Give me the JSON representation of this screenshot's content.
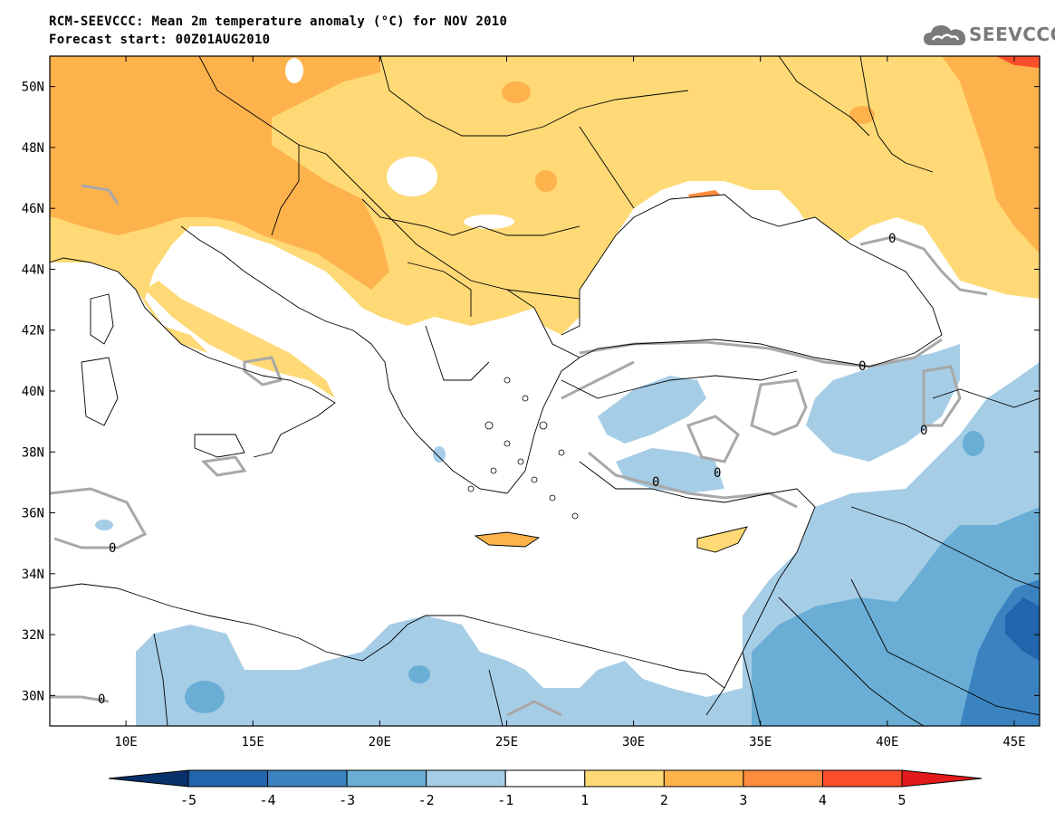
{
  "title": {
    "line1": "RCM-SEEVCCC: Mean 2m temperature anomaly (°C) for NOV 2010",
    "line2": "Forecast start: 00Z01AUG2010"
  },
  "logo": {
    "text": "SEEVCCC",
    "icon": "cloud-icon",
    "color": "#7a7a7a"
  },
  "map": {
    "lon_range": [
      7,
      46
    ],
    "lat_range": [
      29,
      51
    ],
    "lon_ticks": [
      "10E",
      "15E",
      "20E",
      "25E",
      "30E",
      "35E",
      "40E",
      "45E"
    ],
    "lon_tick_values": [
      10,
      15,
      20,
      25,
      30,
      35,
      40,
      45
    ],
    "lat_ticks": [
      "50N",
      "48N",
      "46N",
      "44N",
      "42N",
      "40N",
      "38N",
      "36N",
      "34N",
      "32N",
      "30N"
    ],
    "lat_tick_values": [
      50,
      48,
      46,
      44,
      42,
      40,
      38,
      36,
      34,
      32,
      30
    ],
    "zero_contour_label": "0"
  },
  "colorbar": {
    "levels": [
      "-5",
      "-4",
      "-3",
      "-2",
      "-1",
      "1",
      "2",
      "3",
      "4",
      "5"
    ],
    "colors": [
      "#08306b",
      "#2166ac",
      "#3b82c0",
      "#6aaed6",
      "#a6cde6",
      "#ffffff",
      "#fed976",
      "#feb24c",
      "#fd8d3c",
      "#fc4e2a",
      "#e31a1c"
    ]
  }
}
